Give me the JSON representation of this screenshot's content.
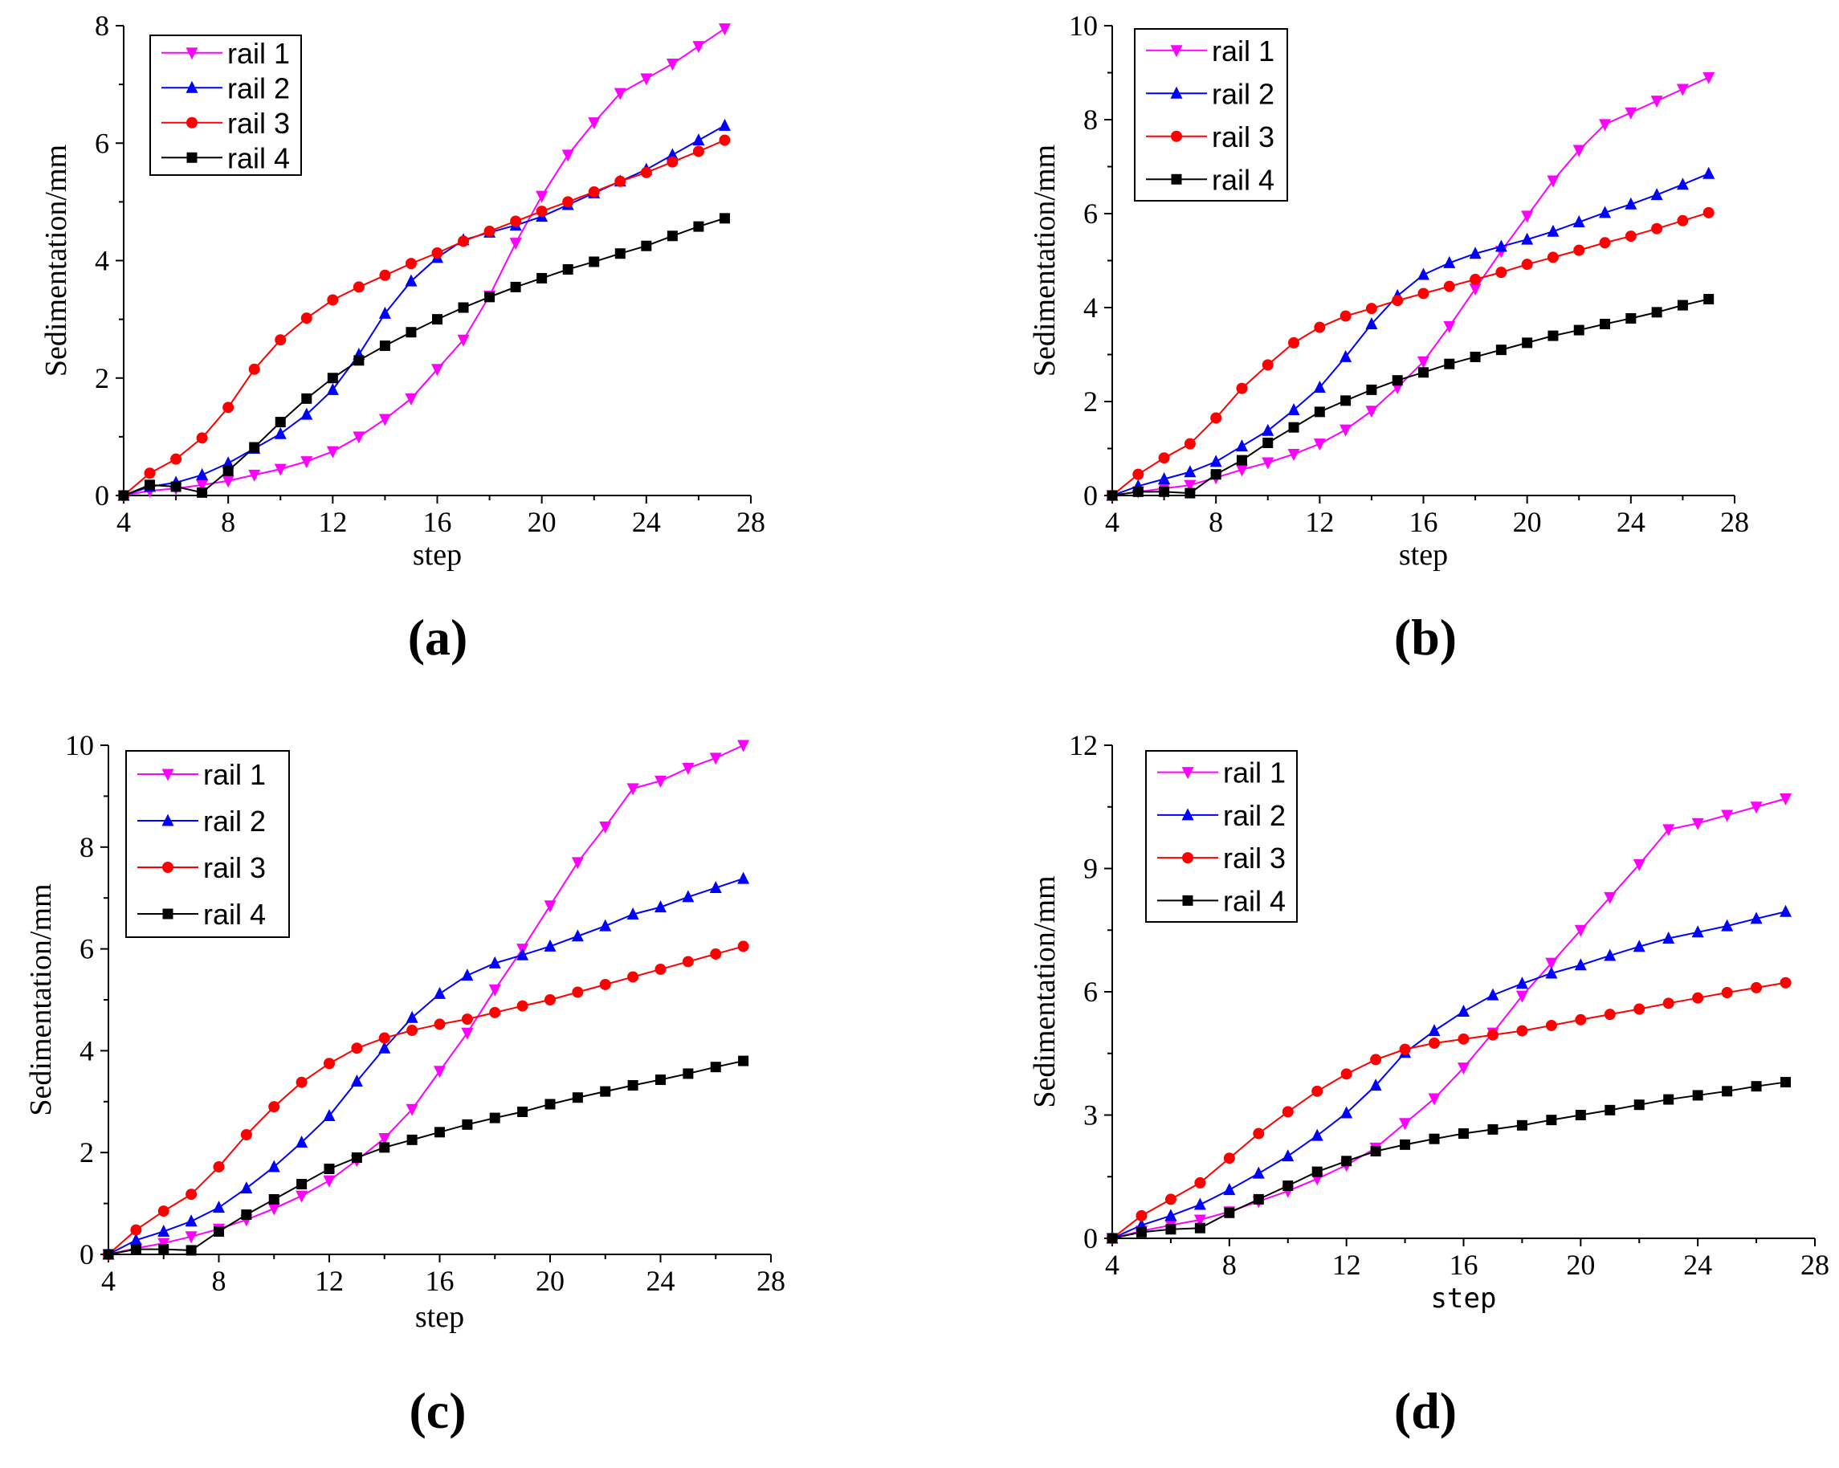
{
  "colors": {
    "rail1": "#ff00ff",
    "rail2": "#0000ff",
    "rail3": "#ff0000",
    "rail4": "#000000"
  },
  "chart_data": [
    {
      "type": "line",
      "panel_label": "(a)",
      "xlabel": "step",
      "ylabel": "Sedimentation/mm",
      "xlim": [
        4,
        28
      ],
      "ylim": [
        0,
        8
      ],
      "xticks": [
        4,
        8,
        12,
        16,
        20,
        24,
        28
      ],
      "yticks": [
        0,
        2,
        4,
        6,
        8
      ],
      "legend_position": "top-left",
      "x": [
        4,
        5,
        6,
        7,
        8,
        9,
        10,
        11,
        12,
        13,
        14,
        15,
        16,
        17,
        18,
        19,
        20,
        21,
        22,
        23,
        24,
        25,
        26,
        27
      ],
      "series": [
        {
          "name": "rail 1",
          "marker": "triangle-down",
          "color": "#ff00ff",
          "values": [
            0,
            0.08,
            0.12,
            0.18,
            0.25,
            0.35,
            0.45,
            0.58,
            0.75,
            1.0,
            1.3,
            1.65,
            2.15,
            2.65,
            3.4,
            4.3,
            5.1,
            5.8,
            6.35,
            6.85,
            7.1,
            7.35,
            7.65,
            7.95
          ]
        },
        {
          "name": "rail 2",
          "marker": "triangle-up",
          "color": "#0000ff",
          "values": [
            0,
            0.15,
            0.22,
            0.35,
            0.55,
            0.8,
            1.05,
            1.38,
            1.8,
            2.4,
            3.1,
            3.65,
            4.05,
            4.35,
            4.48,
            4.6,
            4.75,
            4.95,
            5.15,
            5.35,
            5.55,
            5.8,
            6.05,
            6.3
          ]
        },
        {
          "name": "rail 3",
          "marker": "circle",
          "color": "#ff0000",
          "values": [
            0,
            0.38,
            0.62,
            0.98,
            1.5,
            2.15,
            2.65,
            3.02,
            3.33,
            3.55,
            3.75,
            3.95,
            4.13,
            4.33,
            4.5,
            4.67,
            4.84,
            5.0,
            5.17,
            5.35,
            5.5,
            5.68,
            5.86,
            6.05
          ]
        },
        {
          "name": "rail 4",
          "marker": "square",
          "color": "#000000",
          "values": [
            0,
            0.18,
            0.15,
            0.05,
            0.42,
            0.82,
            1.25,
            1.65,
            2.0,
            2.3,
            2.55,
            2.78,
            3.0,
            3.2,
            3.38,
            3.55,
            3.7,
            3.85,
            3.98,
            4.12,
            4.25,
            4.42,
            4.58,
            4.72
          ]
        }
      ]
    },
    {
      "type": "line",
      "panel_label": "(b)",
      "xlabel": "step",
      "ylabel": "Sedimentation/mm",
      "xlim": [
        4,
        28
      ],
      "ylim": [
        0,
        10
      ],
      "xticks": [
        4,
        8,
        12,
        16,
        20,
        24,
        28
      ],
      "yticks": [
        0,
        2,
        4,
        6,
        8,
        10
      ],
      "legend_position": "top-left",
      "x": [
        4,
        5,
        6,
        7,
        8,
        9,
        10,
        11,
        12,
        13,
        14,
        15,
        16,
        17,
        18,
        19,
        20,
        21,
        22,
        23,
        24,
        25,
        26,
        27
      ],
      "series": [
        {
          "name": "rail 1",
          "marker": "triangle-down",
          "color": "#ff00ff",
          "values": [
            0,
            0.08,
            0.15,
            0.22,
            0.38,
            0.55,
            0.7,
            0.88,
            1.1,
            1.4,
            1.8,
            2.3,
            2.85,
            3.6,
            4.4,
            5.2,
            5.95,
            6.7,
            7.35,
            7.9,
            8.15,
            8.4,
            8.65,
            8.9
          ]
        },
        {
          "name": "rail 2",
          "marker": "triangle-up",
          "color": "#0000ff",
          "values": [
            0,
            0.2,
            0.35,
            0.5,
            0.72,
            1.05,
            1.38,
            1.82,
            2.3,
            2.95,
            3.65,
            4.25,
            4.7,
            4.95,
            5.15,
            5.3,
            5.45,
            5.62,
            5.82,
            6.02,
            6.2,
            6.4,
            6.62,
            6.85
          ]
        },
        {
          "name": "rail 3",
          "marker": "circle",
          "color": "#ff0000",
          "values": [
            0,
            0.45,
            0.8,
            1.1,
            1.65,
            2.28,
            2.78,
            3.25,
            3.58,
            3.82,
            3.98,
            4.15,
            4.3,
            4.45,
            4.6,
            4.75,
            4.92,
            5.07,
            5.22,
            5.38,
            5.52,
            5.68,
            5.85,
            6.02
          ]
        },
        {
          "name": "rail 4",
          "marker": "square",
          "color": "#000000",
          "values": [
            0,
            0.08,
            0.08,
            0.05,
            0.45,
            0.75,
            1.12,
            1.45,
            1.78,
            2.02,
            2.25,
            2.45,
            2.62,
            2.8,
            2.95,
            3.1,
            3.25,
            3.4,
            3.52,
            3.65,
            3.77,
            3.9,
            4.05,
            4.18
          ]
        }
      ]
    },
    {
      "type": "line",
      "panel_label": "(c)",
      "xlabel": "step",
      "ylabel": "Sedimentation/mm",
      "xlim": [
        4,
        28
      ],
      "ylim": [
        0,
        10
      ],
      "xticks": [
        4,
        8,
        12,
        16,
        20,
        24,
        28
      ],
      "yticks": [
        0,
        2,
        4,
        6,
        8,
        10
      ],
      "legend_position": "top-left",
      "x": [
        4,
        5,
        6,
        7,
        8,
        9,
        10,
        11,
        12,
        13,
        14,
        15,
        16,
        17,
        18,
        19,
        20,
        21,
        22,
        23,
        24,
        25,
        26,
        27
      ],
      "series": [
        {
          "name": "rail 1",
          "marker": "triangle-down",
          "color": "#ff00ff",
          "values": [
            0,
            0.12,
            0.22,
            0.35,
            0.5,
            0.68,
            0.9,
            1.15,
            1.45,
            1.85,
            2.28,
            2.85,
            3.6,
            4.35,
            5.2,
            6.0,
            6.85,
            7.7,
            8.4,
            9.15,
            9.3,
            9.55,
            9.75,
            10.0
          ]
        },
        {
          "name": "rail 2",
          "marker": "triangle-up",
          "color": "#0000ff",
          "values": [
            0,
            0.28,
            0.45,
            0.65,
            0.92,
            1.3,
            1.72,
            2.2,
            2.72,
            3.4,
            4.05,
            4.65,
            5.12,
            5.48,
            5.72,
            5.88,
            6.05,
            6.25,
            6.45,
            6.68,
            6.82,
            7.02,
            7.2,
            7.38
          ]
        },
        {
          "name": "rail 3",
          "marker": "circle",
          "color": "#ff0000",
          "values": [
            0,
            0.48,
            0.85,
            1.18,
            1.72,
            2.35,
            2.9,
            3.38,
            3.75,
            4.05,
            4.25,
            4.4,
            4.52,
            4.62,
            4.75,
            4.88,
            5.0,
            5.15,
            5.3,
            5.45,
            5.6,
            5.75,
            5.9,
            6.05
          ]
        },
        {
          "name": "rail 4",
          "marker": "square",
          "color": "#000000",
          "values": [
            0,
            0.1,
            0.1,
            0.08,
            0.45,
            0.78,
            1.08,
            1.38,
            1.68,
            1.9,
            2.1,
            2.25,
            2.4,
            2.55,
            2.68,
            2.8,
            2.95,
            3.08,
            3.2,
            3.32,
            3.43,
            3.55,
            3.68,
            3.8
          ]
        }
      ]
    },
    {
      "type": "line",
      "panel_label": "(d)",
      "xlabel": "step",
      "ylabel": "Sedimentation/mm",
      "xlim": [
        4,
        28
      ],
      "ylim": [
        0,
        12
      ],
      "xticks": [
        4,
        8,
        12,
        16,
        20,
        24,
        28
      ],
      "yticks": [
        0,
        3,
        6,
        9,
        12
      ],
      "legend_position": "top-left",
      "x": [
        4,
        5,
        6,
        7,
        8,
        9,
        10,
        11,
        12,
        13,
        14,
        15,
        16,
        17,
        18,
        19,
        20,
        21,
        22,
        23,
        24,
        25,
        26,
        27
      ],
      "series": [
        {
          "name": "rail 1",
          "marker": "triangle-down",
          "color": "#ff00ff",
          "values": [
            0,
            0.18,
            0.32,
            0.45,
            0.65,
            0.9,
            1.15,
            1.45,
            1.78,
            2.2,
            2.8,
            3.4,
            4.15,
            5.0,
            5.9,
            6.7,
            7.5,
            8.3,
            9.1,
            9.95,
            10.1,
            10.3,
            10.5,
            10.7
          ]
        },
        {
          "name": "rail 2",
          "marker": "triangle-up",
          "color": "#0000ff",
          "values": [
            0,
            0.32,
            0.55,
            0.82,
            1.18,
            1.58,
            2.0,
            2.5,
            3.05,
            3.72,
            4.52,
            5.05,
            5.52,
            5.92,
            6.2,
            6.45,
            6.65,
            6.88,
            7.1,
            7.3,
            7.45,
            7.6,
            7.78,
            7.95
          ]
        },
        {
          "name": "rail 3",
          "marker": "circle",
          "color": "#ff0000",
          "values": [
            0,
            0.55,
            0.95,
            1.35,
            1.95,
            2.55,
            3.08,
            3.58,
            4.0,
            4.35,
            4.6,
            4.75,
            4.85,
            4.95,
            5.05,
            5.18,
            5.32,
            5.45,
            5.58,
            5.72,
            5.85,
            5.98,
            6.1,
            6.22
          ]
        },
        {
          "name": "rail 4",
          "marker": "square",
          "color": "#000000",
          "values": [
            0,
            0.15,
            0.22,
            0.25,
            0.62,
            0.95,
            1.28,
            1.62,
            1.88,
            2.12,
            2.28,
            2.42,
            2.55,
            2.65,
            2.75,
            2.88,
            3.0,
            3.12,
            3.25,
            3.38,
            3.48,
            3.58,
            3.7,
            3.8
          ]
        }
      ]
    }
  ]
}
